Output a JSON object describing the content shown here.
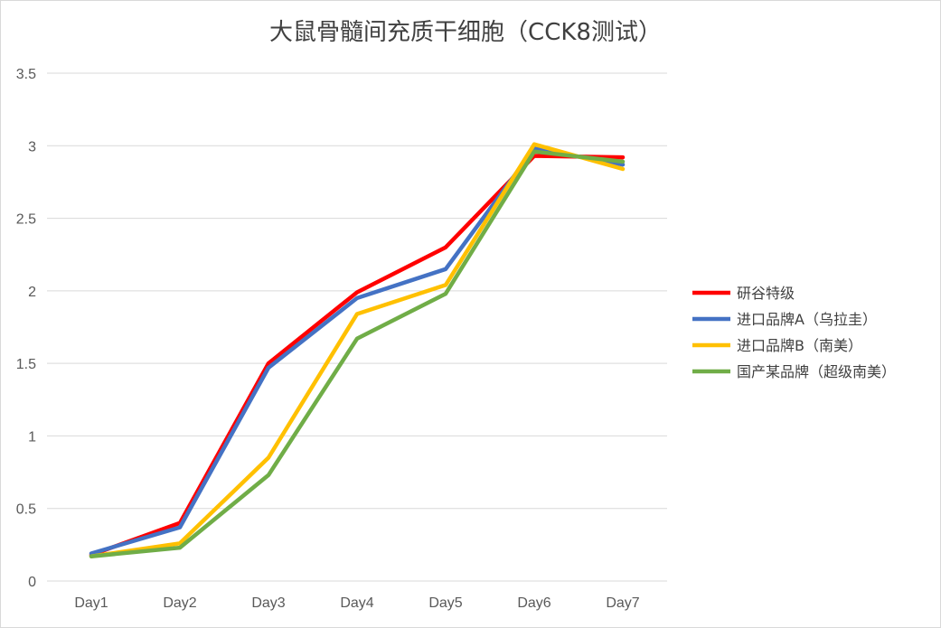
{
  "chart_data": {
    "type": "line",
    "title": "大鼠骨髓间充质干细胞（CCK8测试）",
    "xlabel": "",
    "ylabel": "",
    "categories": [
      "Day1",
      "Day2",
      "Day3",
      "Day4",
      "Day5",
      "Day6",
      "Day7"
    ],
    "ylim": [
      0,
      3.5
    ],
    "yticks": [
      "0",
      "0.5",
      "1",
      "1.5",
      "2",
      "2.5",
      "3",
      "3.5"
    ],
    "grid": true,
    "legend_position": "right",
    "series": [
      {
        "name": "研谷特级",
        "color": "#ff0000",
        "values": [
          0.18,
          0.4,
          1.5,
          1.99,
          2.3,
          2.93,
          2.92
        ]
      },
      {
        "name": "进口品牌A（乌拉圭）",
        "color": "#4472c4",
        "values": [
          0.19,
          0.37,
          1.47,
          1.95,
          2.15,
          2.98,
          2.87
        ]
      },
      {
        "name": "进口品牌B（南美）",
        "color": "#ffc000",
        "values": [
          0.17,
          0.26,
          0.85,
          1.84,
          2.04,
          3.01,
          2.84
        ]
      },
      {
        "name": "国产某品牌（超级南美）",
        "color": "#70ad47",
        "values": [
          0.17,
          0.23,
          0.73,
          1.67,
          1.98,
          2.96,
          2.89
        ]
      }
    ]
  }
}
